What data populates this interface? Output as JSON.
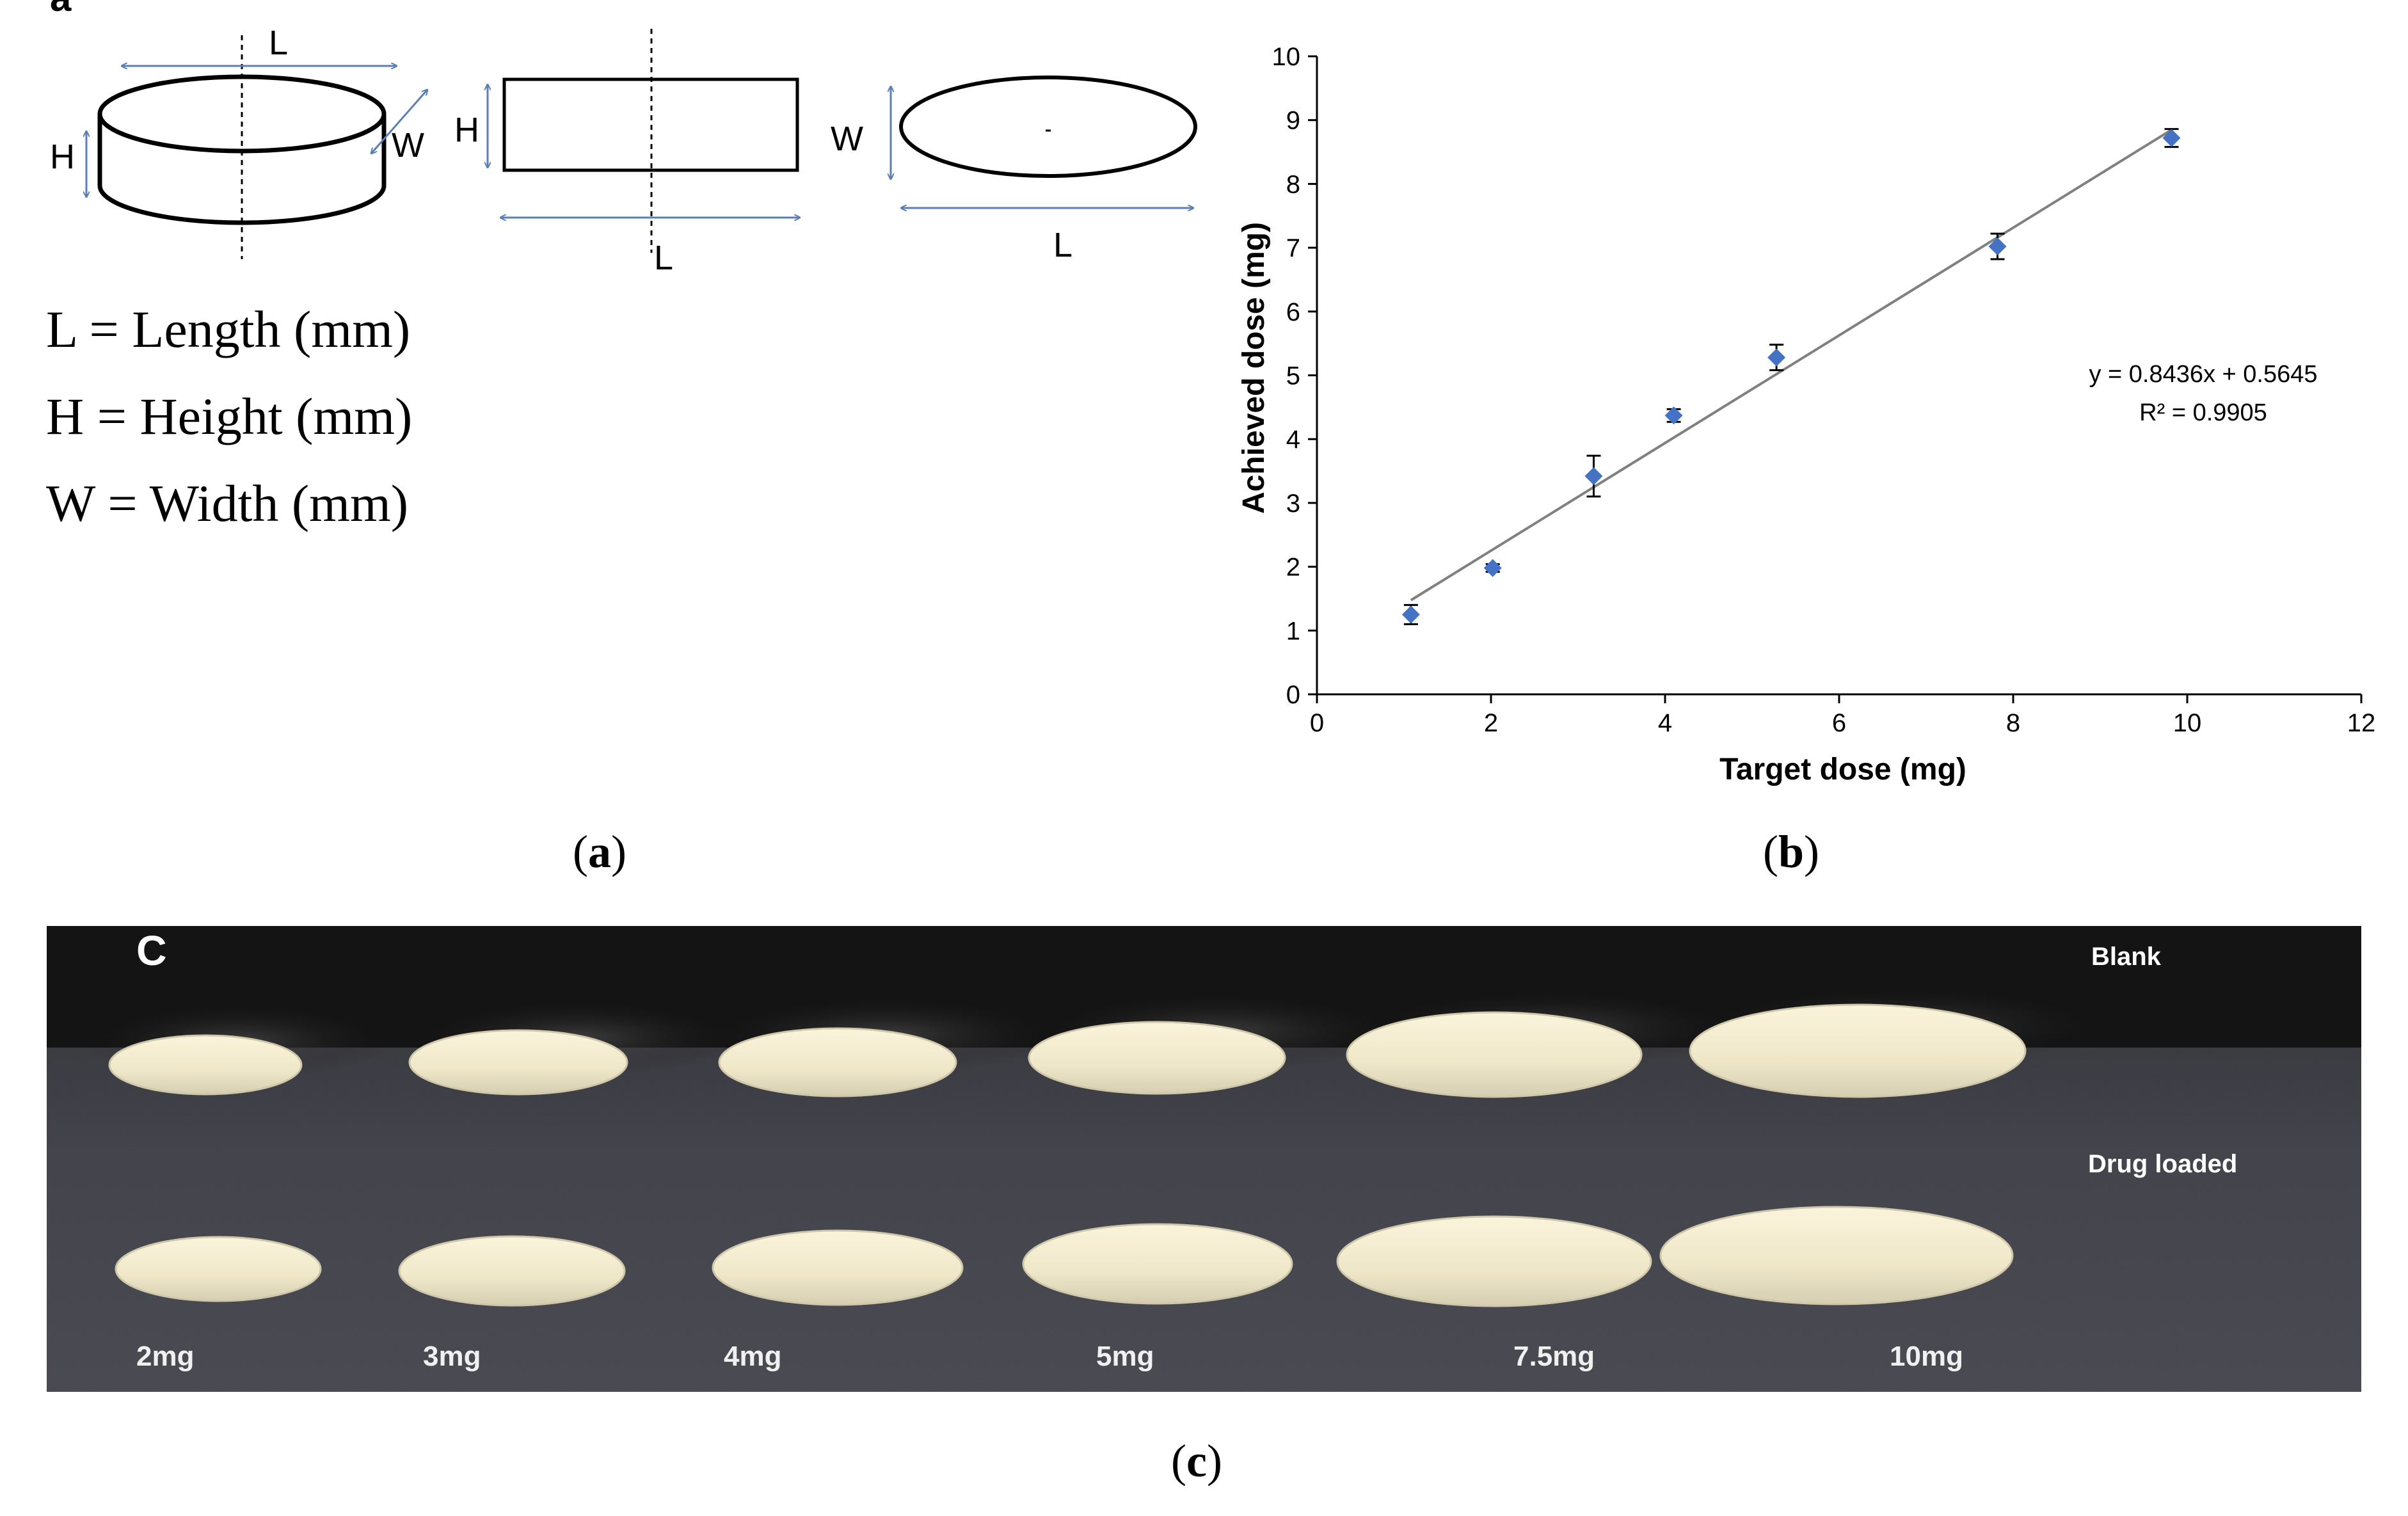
{
  "panel_a": {
    "corner_letter": "a",
    "dims": {
      "L": "L",
      "H": "H",
      "W": "W"
    },
    "definitions": [
      "L = Length (mm)",
      "H = Height (mm)",
      "W = Width (mm)"
    ]
  },
  "captions": {
    "a": {
      "open": "(",
      "letter": "a",
      "close": ")"
    },
    "b": {
      "open": "(",
      "letter": "b",
      "close": ")"
    },
    "c": {
      "open": "(",
      "letter": "c",
      "close": ")"
    }
  },
  "chart_data": {
    "type": "scatter",
    "xlabel": "Target dose (mg)",
    "ylabel": "Achieved dose (mg)",
    "xlim": [
      0,
      12
    ],
    "ylim": [
      0,
      10
    ],
    "xticks": [
      0,
      2,
      4,
      6,
      8,
      10,
      12
    ],
    "yticks": [
      0,
      1,
      2,
      3,
      4,
      5,
      6,
      7,
      8,
      9,
      10
    ],
    "points": [
      {
        "x": 1.08,
        "y": 1.25,
        "err": 0.15
      },
      {
        "x": 2.02,
        "y": 1.98,
        "err": 0.06
      },
      {
        "x": 3.18,
        "y": 3.42,
        "err": 0.32
      },
      {
        "x": 4.1,
        "y": 4.37,
        "err": 0.1
      },
      {
        "x": 5.28,
        "y": 5.28,
        "err": 0.2
      },
      {
        "x": 7.82,
        "y": 7.02,
        "err": 0.2
      },
      {
        "x": 9.82,
        "y": 8.72,
        "err": 0.14
      }
    ],
    "trendline": {
      "slope": 0.8436,
      "intercept": 0.5645,
      "x_range": [
        1.08,
        9.82
      ]
    },
    "equation": "y = 0.8436x + 0.5645",
    "r_squared": "R² = 0.9905",
    "colors": {
      "marker": "#4472c4",
      "trendline": "#808080",
      "axis": "#000000"
    }
  },
  "photo": {
    "corner_label": "C",
    "row_labels": {
      "blank": "Blank",
      "drug": "Drug loaded"
    },
    "doses": [
      "2mg",
      "3mg",
      "4mg",
      "5mg",
      "7.5mg",
      "10mg"
    ],
    "colors": {
      "backdrop": "#141414",
      "surface": "#3c3c44",
      "tablet": "#f3ecd0"
    }
  }
}
